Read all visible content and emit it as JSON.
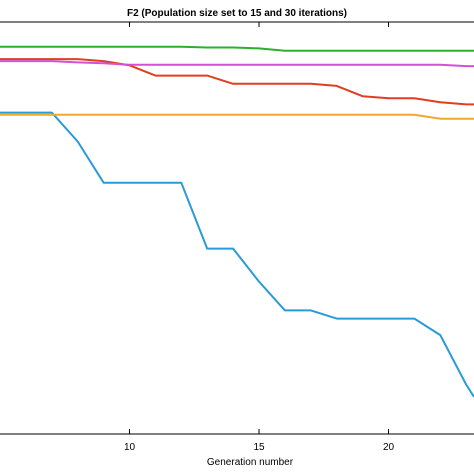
{
  "chart_data": {
    "type": "line",
    "title": "F2 (Population size set to 15 and 30 iterations)",
    "xlabel": "Generation number",
    "ylabel": "",
    "xlim": [
      5,
      23.3
    ],
    "ylim": [
      0,
      100
    ],
    "x_ticks": [
      10,
      15,
      20
    ],
    "grid": false,
    "series": [
      {
        "color": "#2a9bd8",
        "x": [
          5,
          6,
          7,
          8,
          9,
          10,
          11,
          12,
          13,
          14,
          15,
          16,
          17,
          18,
          19,
          20,
          21,
          22,
          23,
          23.3
        ],
        "y": [
          78,
          78,
          78,
          71,
          61,
          61,
          61,
          61,
          45,
          45,
          37,
          30,
          30,
          28,
          28,
          28,
          28,
          24,
          12,
          9
        ]
      },
      {
        "color": "#f0a92a",
        "x": [
          5,
          6,
          7,
          8,
          9,
          10,
          11,
          12,
          13,
          14,
          15,
          16,
          17,
          18,
          19,
          20,
          21,
          22,
          23,
          23.3
        ],
        "y": [
          77.5,
          77.5,
          77.5,
          77.5,
          77.5,
          77.5,
          77.5,
          77.5,
          77.5,
          77.5,
          77.5,
          77.5,
          77.5,
          77.5,
          77.5,
          77.5,
          77.5,
          76.5,
          76.5,
          76.5
        ]
      },
      {
        "color": "#e03f1f",
        "x": [
          5,
          6,
          7,
          8,
          9,
          10,
          11,
          12,
          13,
          14,
          15,
          16,
          17,
          18,
          19,
          20,
          21,
          22,
          23,
          23.3
        ],
        "y": [
          91,
          91,
          91,
          91,
          90.5,
          89.5,
          87,
          87,
          87,
          85,
          85,
          85,
          85,
          84.5,
          82,
          81.5,
          81.5,
          80.5,
          80,
          80
        ]
      },
      {
        "color": "#d64fd6",
        "x": [
          5,
          6,
          7,
          8,
          9,
          10,
          11,
          12,
          13,
          14,
          15,
          16,
          17,
          18,
          19,
          20,
          21,
          22,
          23,
          23.3
        ],
        "y": [
          90.5,
          90.5,
          90.5,
          90.2,
          90,
          89.6,
          89.6,
          89.6,
          89.6,
          89.6,
          89.6,
          89.6,
          89.6,
          89.6,
          89.6,
          89.6,
          89.6,
          89.6,
          89.3,
          89.3
        ]
      },
      {
        "color": "#2cb02c",
        "x": [
          5,
          6,
          7,
          8,
          9,
          10,
          11,
          12,
          13,
          14,
          15,
          16,
          17,
          18,
          19,
          20,
          21,
          22,
          23,
          23.3
        ],
        "y": [
          94,
          94,
          94,
          94,
          94,
          94,
          94,
          94,
          93.8,
          93.8,
          93.6,
          93,
          93,
          93,
          93,
          93,
          93,
          93,
          93,
          93
        ]
      }
    ]
  }
}
